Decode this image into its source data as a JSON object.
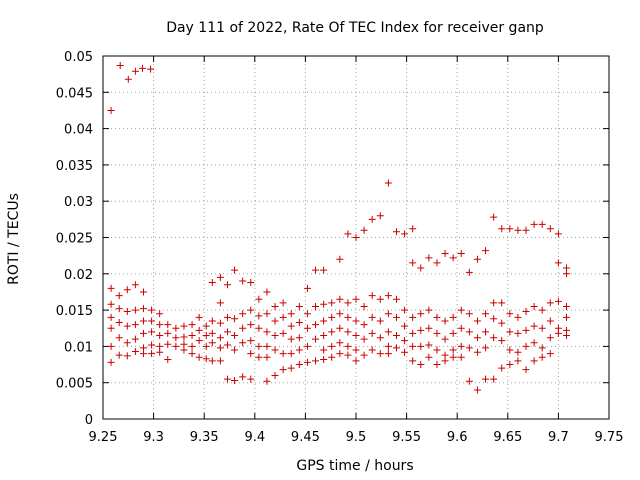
{
  "chart_data": {
    "type": "scatter",
    "title": "Day 111 of 2022, Rate Of TEC Index for receiver ganp",
    "xlabel": "GPS time / hours",
    "ylabel": "ROTI / TECUs",
    "xlim": [
      9.25,
      9.75
    ],
    "ylim": [
      0,
      0.05
    ],
    "xticks": [
      9.25,
      9.3,
      9.35,
      9.4,
      9.45,
      9.5,
      9.55,
      9.6,
      9.65,
      9.7,
      9.75
    ],
    "xtick_labels": [
      "9.25",
      "9.3",
      "9.35",
      "9.4",
      "9.45",
      "9.5",
      "9.55",
      "9.6",
      "9.65",
      "9.7",
      "9.75"
    ],
    "yticks": [
      0,
      0.005,
      0.01,
      0.015,
      0.02,
      0.025,
      0.03,
      0.035,
      0.04,
      0.045,
      0.05
    ],
    "ytick_labels": [
      "0",
      "0.005",
      "0.01",
      "0.015",
      "0.02",
      "0.025",
      "0.03",
      "0.035",
      "0.04",
      "0.045",
      "0.05"
    ],
    "grid": true,
    "marker": "+",
    "color": "#cc0000",
    "series": [
      {
        "name": "ROTI",
        "points": [
          [
            9.258,
            0.0425
          ],
          [
            9.267,
            0.0487
          ],
          [
            9.275,
            0.0468
          ],
          [
            9.282,
            0.0479
          ],
          [
            9.289,
            0.0483
          ],
          [
            9.297,
            0.0482
          ],
          [
            9.258,
            0.018
          ],
          [
            9.258,
            0.0158
          ],
          [
            9.258,
            0.014
          ],
          [
            9.258,
            0.0125
          ],
          [
            9.258,
            0.01
          ],
          [
            9.258,
            0.0078
          ],
          [
            9.266,
            0.017
          ],
          [
            9.266,
            0.0152
          ],
          [
            9.266,
            0.0133
          ],
          [
            9.266,
            0.0112
          ],
          [
            9.266,
            0.0088
          ],
          [
            9.274,
            0.0178
          ],
          [
            9.274,
            0.0148
          ],
          [
            9.274,
            0.0128
          ],
          [
            9.274,
            0.0105
          ],
          [
            9.274,
            0.0087
          ],
          [
            9.282,
            0.0185
          ],
          [
            9.282,
            0.015
          ],
          [
            9.282,
            0.013
          ],
          [
            9.282,
            0.011
          ],
          [
            9.282,
            0.0093
          ],
          [
            9.29,
            0.0175
          ],
          [
            9.29,
            0.0152
          ],
          [
            9.29,
            0.0135
          ],
          [
            9.29,
            0.0118
          ],
          [
            9.29,
            0.0098
          ],
          [
            9.29,
            0.009
          ],
          [
            9.298,
            0.015
          ],
          [
            9.298,
            0.0135
          ],
          [
            9.298,
            0.012
          ],
          [
            9.298,
            0.0102
          ],
          [
            9.298,
            0.009
          ],
          [
            9.306,
            0.0145
          ],
          [
            9.306,
            0.013
          ],
          [
            9.306,
            0.0115
          ],
          [
            9.306,
            0.01
          ],
          [
            9.306,
            0.0092
          ],
          [
            9.314,
            0.013
          ],
          [
            9.314,
            0.0118
          ],
          [
            9.314,
            0.0103
          ],
          [
            9.314,
            0.0082
          ],
          [
            9.322,
            0.0125
          ],
          [
            9.322,
            0.0112
          ],
          [
            9.322,
            0.01
          ],
          [
            9.33,
            0.0128
          ],
          [
            9.33,
            0.0113
          ],
          [
            9.33,
            0.0103
          ],
          [
            9.33,
            0.0095
          ],
          [
            9.338,
            0.013
          ],
          [
            9.338,
            0.0115
          ],
          [
            9.338,
            0.01
          ],
          [
            9.338,
            0.009
          ],
          [
            9.345,
            0.014
          ],
          [
            9.345,
            0.0122
          ],
          [
            9.345,
            0.0108
          ],
          [
            9.345,
            0.0085
          ],
          [
            9.352,
            0.0128
          ],
          [
            9.352,
            0.0115
          ],
          [
            9.352,
            0.01
          ],
          [
            9.352,
            0.0083
          ],
          [
            9.358,
            0.0188
          ],
          [
            9.358,
            0.0135
          ],
          [
            9.358,
            0.0118
          ],
          [
            9.358,
            0.0105
          ],
          [
            9.358,
            0.008
          ],
          [
            9.366,
            0.0195
          ],
          [
            9.366,
            0.016
          ],
          [
            9.366,
            0.0132
          ],
          [
            9.366,
            0.0112
          ],
          [
            9.366,
            0.0098
          ],
          [
            9.366,
            0.008
          ],
          [
            9.373,
            0.0185
          ],
          [
            9.373,
            0.014
          ],
          [
            9.373,
            0.012
          ],
          [
            9.373,
            0.0102
          ],
          [
            9.373,
            0.0055
          ],
          [
            9.38,
            0.0205
          ],
          [
            9.38,
            0.0138
          ],
          [
            9.38,
            0.0115
          ],
          [
            9.38,
            0.0095
          ],
          [
            9.38,
            0.0053
          ],
          [
            9.388,
            0.019
          ],
          [
            9.388,
            0.0145
          ],
          [
            9.388,
            0.0125
          ],
          [
            9.388,
            0.0105
          ],
          [
            9.388,
            0.0058
          ],
          [
            9.396,
            0.0188
          ],
          [
            9.396,
            0.015
          ],
          [
            9.396,
            0.013
          ],
          [
            9.396,
            0.0108
          ],
          [
            9.396,
            0.009
          ],
          [
            9.396,
            0.0055
          ],
          [
            9.404,
            0.0165
          ],
          [
            9.404,
            0.0142
          ],
          [
            9.404,
            0.0125
          ],
          [
            9.404,
            0.01
          ],
          [
            9.404,
            0.0085
          ],
          [
            9.412,
            0.0175
          ],
          [
            9.412,
            0.0145
          ],
          [
            9.412,
            0.012
          ],
          [
            9.412,
            0.01
          ],
          [
            9.412,
            0.0085
          ],
          [
            9.412,
            0.0052
          ],
          [
            9.42,
            0.0155
          ],
          [
            9.42,
            0.0135
          ],
          [
            9.42,
            0.0115
          ],
          [
            9.42,
            0.0095
          ],
          [
            9.42,
            0.006
          ],
          [
            9.428,
            0.016
          ],
          [
            9.428,
            0.014
          ],
          [
            9.428,
            0.0118
          ],
          [
            9.428,
            0.009
          ],
          [
            9.428,
            0.0068
          ],
          [
            9.436,
            0.0145
          ],
          [
            9.436,
            0.0128
          ],
          [
            9.436,
            0.011
          ],
          [
            9.436,
            0.009
          ],
          [
            9.436,
            0.007
          ],
          [
            9.444,
            0.0155
          ],
          [
            9.444,
            0.0133
          ],
          [
            9.444,
            0.0112
          ],
          [
            9.444,
            0.0095
          ],
          [
            9.444,
            0.0075
          ],
          [
            9.452,
            0.018
          ],
          [
            9.452,
            0.0145
          ],
          [
            9.452,
            0.0125
          ],
          [
            9.452,
            0.01
          ],
          [
            9.452,
            0.0078
          ],
          [
            9.46,
            0.0205
          ],
          [
            9.46,
            0.0155
          ],
          [
            9.46,
            0.013
          ],
          [
            9.46,
            0.011
          ],
          [
            9.46,
            0.008
          ],
          [
            9.468,
            0.0205
          ],
          [
            9.468,
            0.0158
          ],
          [
            9.468,
            0.0135
          ],
          [
            9.468,
            0.0115
          ],
          [
            9.468,
            0.0095
          ],
          [
            9.468,
            0.0082
          ],
          [
            9.476,
            0.016
          ],
          [
            9.476,
            0.014
          ],
          [
            9.476,
            0.012
          ],
          [
            9.476,
            0.01
          ],
          [
            9.476,
            0.0085
          ],
          [
            9.484,
            0.022
          ],
          [
            9.484,
            0.0165
          ],
          [
            9.484,
            0.0145
          ],
          [
            9.484,
            0.0125
          ],
          [
            9.484,
            0.0105
          ],
          [
            9.484,
            0.009
          ],
          [
            9.492,
            0.0255
          ],
          [
            9.492,
            0.016
          ],
          [
            9.492,
            0.014
          ],
          [
            9.492,
            0.012
          ],
          [
            9.492,
            0.01
          ],
          [
            9.492,
            0.0088
          ],
          [
            9.5,
            0.025
          ],
          [
            9.5,
            0.0165
          ],
          [
            9.5,
            0.0135
          ],
          [
            9.5,
            0.0115
          ],
          [
            9.5,
            0.0095
          ],
          [
            9.5,
            0.008
          ],
          [
            9.508,
            0.026
          ],
          [
            9.508,
            0.0155
          ],
          [
            9.508,
            0.013
          ],
          [
            9.508,
            0.011
          ],
          [
            9.508,
            0.0088
          ],
          [
            9.516,
            0.0275
          ],
          [
            9.516,
            0.017
          ],
          [
            9.516,
            0.014
          ],
          [
            9.516,
            0.0118
          ],
          [
            9.516,
            0.0095
          ],
          [
            9.524,
            0.028
          ],
          [
            9.524,
            0.0165
          ],
          [
            9.524,
            0.0135
          ],
          [
            9.524,
            0.0112
          ],
          [
            9.524,
            0.009
          ],
          [
            9.532,
            0.0325
          ],
          [
            9.532,
            0.017
          ],
          [
            9.532,
            0.0145
          ],
          [
            9.532,
            0.012
          ],
          [
            9.532,
            0.01
          ],
          [
            9.532,
            0.009
          ],
          [
            9.54,
            0.0258
          ],
          [
            9.54,
            0.0165
          ],
          [
            9.54,
            0.014
          ],
          [
            9.54,
            0.0115
          ],
          [
            9.54,
            0.0098
          ],
          [
            9.548,
            0.0255
          ],
          [
            9.548,
            0.015
          ],
          [
            9.548,
            0.0128
          ],
          [
            9.548,
            0.0108
          ],
          [
            9.548,
            0.0092
          ],
          [
            9.556,
            0.0262
          ],
          [
            9.556,
            0.0215
          ],
          [
            9.556,
            0.014
          ],
          [
            9.556,
            0.0118
          ],
          [
            9.556,
            0.01
          ],
          [
            9.556,
            0.008
          ],
          [
            9.564,
            0.0208
          ],
          [
            9.564,
            0.0145
          ],
          [
            9.564,
            0.0122
          ],
          [
            9.564,
            0.01
          ],
          [
            9.564,
            0.0075
          ],
          [
            9.572,
            0.0222
          ],
          [
            9.572,
            0.015
          ],
          [
            9.572,
            0.0125
          ],
          [
            9.572,
            0.0102
          ],
          [
            9.572,
            0.0085
          ],
          [
            9.58,
            0.0215
          ],
          [
            9.58,
            0.014
          ],
          [
            9.58,
            0.0118
          ],
          [
            9.58,
            0.0095
          ],
          [
            9.58,
            0.0075
          ],
          [
            9.588,
            0.0228
          ],
          [
            9.588,
            0.0135
          ],
          [
            9.588,
            0.011
          ],
          [
            9.588,
            0.0088
          ],
          [
            9.588,
            0.008
          ],
          [
            9.596,
            0.0222
          ],
          [
            9.596,
            0.014
          ],
          [
            9.596,
            0.0118
          ],
          [
            9.596,
            0.0095
          ],
          [
            9.596,
            0.0085
          ],
          [
            9.604,
            0.0228
          ],
          [
            9.604,
            0.015
          ],
          [
            9.604,
            0.0125
          ],
          [
            9.604,
            0.01
          ],
          [
            9.604,
            0.0085
          ],
          [
            9.612,
            0.0202
          ],
          [
            9.612,
            0.0145
          ],
          [
            9.612,
            0.012
          ],
          [
            9.612,
            0.0098
          ],
          [
            9.612,
            0.0052
          ],
          [
            9.62,
            0.022
          ],
          [
            9.62,
            0.0135
          ],
          [
            9.62,
            0.0112
          ],
          [
            9.62,
            0.0092
          ],
          [
            9.62,
            0.004
          ],
          [
            9.628,
            0.0232
          ],
          [
            9.628,
            0.0145
          ],
          [
            9.628,
            0.012
          ],
          [
            9.628,
            0.0098
          ],
          [
            9.628,
            0.0055
          ],
          [
            9.636,
            0.0278
          ],
          [
            9.636,
            0.016
          ],
          [
            9.636,
            0.0138
          ],
          [
            9.636,
            0.0112
          ],
          [
            9.636,
            0.0055
          ],
          [
            9.644,
            0.0262
          ],
          [
            9.644,
            0.016
          ],
          [
            9.644,
            0.0132
          ],
          [
            9.644,
            0.0108
          ],
          [
            9.644,
            0.007
          ],
          [
            9.652,
            0.0262
          ],
          [
            9.652,
            0.0145
          ],
          [
            9.652,
            0.012
          ],
          [
            9.652,
            0.0095
          ],
          [
            9.652,
            0.0075
          ],
          [
            9.66,
            0.026
          ],
          [
            9.66,
            0.014
          ],
          [
            9.66,
            0.0118
          ],
          [
            9.66,
            0.0092
          ],
          [
            9.66,
            0.008
          ],
          [
            9.668,
            0.026
          ],
          [
            9.668,
            0.0148
          ],
          [
            9.668,
            0.0122
          ],
          [
            9.668,
            0.01
          ],
          [
            9.668,
            0.0068
          ],
          [
            9.676,
            0.0268
          ],
          [
            9.676,
            0.0155
          ],
          [
            9.676,
            0.0128
          ],
          [
            9.676,
            0.0105
          ],
          [
            9.676,
            0.008
          ],
          [
            9.684,
            0.0268
          ],
          [
            9.684,
            0.015
          ],
          [
            9.684,
            0.0125
          ],
          [
            9.684,
            0.0098
          ],
          [
            9.684,
            0.0085
          ],
          [
            9.692,
            0.0262
          ],
          [
            9.692,
            0.016
          ],
          [
            9.692,
            0.0135
          ],
          [
            9.692,
            0.0112
          ],
          [
            9.692,
            0.009
          ],
          [
            9.7,
            0.0255
          ],
          [
            9.7,
            0.0215
          ],
          [
            9.7,
            0.0162
          ],
          [
            9.7,
            0.0125
          ],
          [
            9.7,
            0.0118
          ],
          [
            9.708,
            0.0208
          ],
          [
            9.708,
            0.02
          ],
          [
            9.708,
            0.0155
          ],
          [
            9.708,
            0.014
          ],
          [
            9.708,
            0.0122
          ],
          [
            9.708,
            0.0115
          ]
        ]
      }
    ]
  }
}
